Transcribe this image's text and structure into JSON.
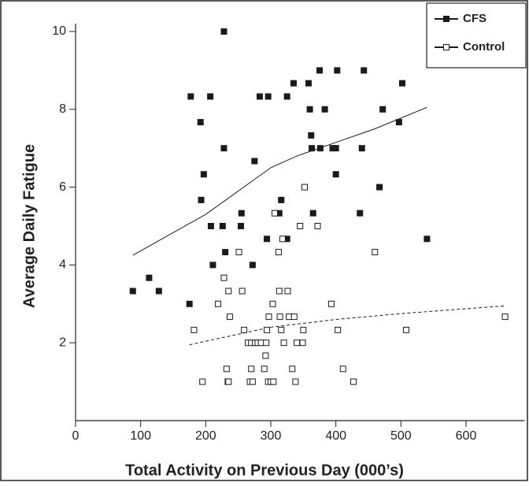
{
  "chart_data": {
    "type": "scatter",
    "x_label": "Total Activity on Previous Day (000’s)",
    "y_label": "Average Daily Fatigue",
    "xlim": [
      0,
      690
    ],
    "ylim": [
      0,
      10
    ],
    "xticks": [
      0,
      100,
      200,
      300,
      400,
      500,
      600
    ],
    "yticks": [
      2,
      4,
      6,
      8,
      10
    ],
    "legend": "top-right",
    "series": [
      {
        "name": "CFS",
        "color": "#1a1a1a",
        "marker": "filled",
        "x": [
          88,
          113,
          128,
          175,
          177,
          192,
          207,
          197,
          193,
          228,
          228,
          226,
          230,
          208,
          211,
          255,
          254,
          272,
          275,
          283,
          296,
          294,
          313,
          316,
          325,
          325,
          335,
          358,
          375,
          402,
          443,
          360,
          383,
          362,
          363,
          376,
          395,
          400,
          400,
          365,
          437,
          440,
          472,
          467,
          497,
          502,
          540
        ],
        "values": [
          3.33,
          3.67,
          3.33,
          3.0,
          8.33,
          7.67,
          8.33,
          6.33,
          5.67,
          10,
          7.0,
          5.0,
          4.33,
          5.0,
          4.0,
          5.33,
          5.0,
          4.0,
          6.67,
          8.33,
          8.33,
          4.67,
          5.33,
          5.67,
          4.67,
          8.33,
          8.67,
          8.67,
          9.0,
          9.0,
          9.0,
          8.0,
          8.0,
          7.33,
          7.0,
          7.0,
          7.0,
          7.0,
          6.33,
          5.33,
          5.33,
          7.0,
          8.0,
          6.0,
          7.67,
          8.67,
          4.67
        ],
        "trend": {
          "style": "solid",
          "x": [
            88,
            200,
            300,
            340,
            400,
            460,
            540
          ],
          "values": [
            4.25,
            5.3,
            6.5,
            6.8,
            7.15,
            7.5,
            8.05
          ]
        }
      },
      {
        "name": "Control",
        "color": "#1a1a1a",
        "marker": "open",
        "x": [
          182,
          195,
          219,
          228,
          232,
          234,
          235,
          235,
          237,
          251,
          256,
          259,
          265,
          268,
          270,
          272,
          270,
          276,
          280,
          285,
          290,
          292,
          293,
          294,
          296,
          297,
          300,
          303,
          304,
          306,
          312,
          313,
          314,
          316,
          318,
          320,
          326,
          328,
          333,
          336,
          338,
          340,
          345,
          349,
          350,
          352,
          372,
          393,
          403,
          411,
          427,
          460,
          508,
          660
        ],
        "values": [
          2.33,
          1.0,
          3.0,
          3.67,
          1.33,
          1.0,
          1.0,
          3.33,
          2.67,
          4.33,
          3.33,
          2.33,
          2.0,
          1.0,
          1.33,
          1.0,
          2.0,
          2.0,
          2.0,
          2.0,
          1.33,
          1.67,
          2.0,
          2.33,
          1.0,
          2.67,
          1.0,
          3.0,
          1.0,
          5.33,
          4.33,
          3.33,
          2.67,
          2.33,
          4.67,
          2.0,
          3.33,
          2.67,
          1.33,
          2.67,
          1.0,
          2.0,
          5.0,
          2.0,
          2.33,
          6.0,
          5.0,
          3.0,
          2.33,
          1.33,
          1.0,
          4.33,
          2.33,
          2.67
        ],
        "trend": {
          "style": "dashed",
          "x": [
            175,
            300,
            400,
            500,
            660
          ],
          "values": [
            1.95,
            2.4,
            2.6,
            2.75,
            2.95
          ]
        }
      }
    ]
  }
}
